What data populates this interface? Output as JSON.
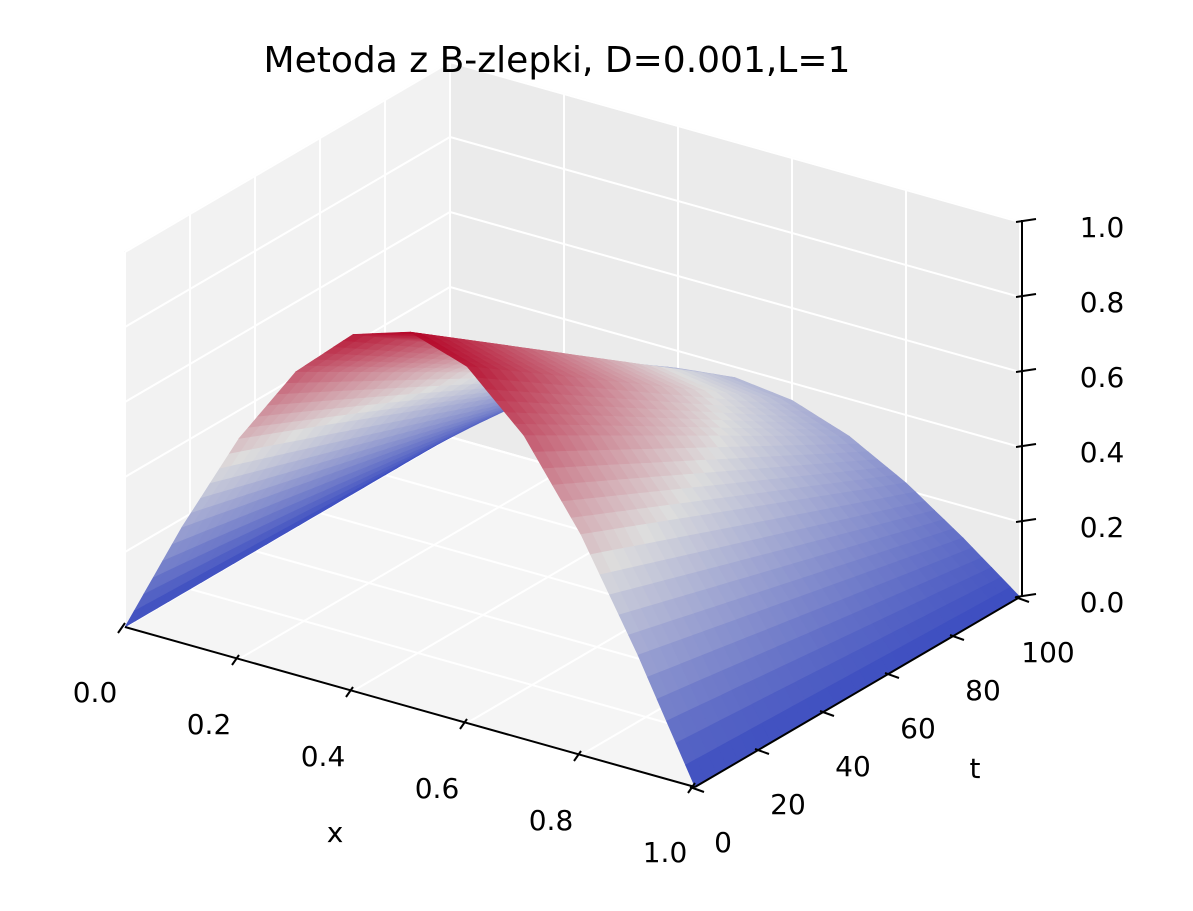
{
  "chart_data": {
    "type": "surface",
    "title": "Metoda z B-zlepki, D=0.001,L=1",
    "xlabel": "x",
    "ylabel": "t",
    "zlabel": "",
    "xlim": [
      0,
      1
    ],
    "ylim": [
      0,
      100
    ],
    "zlim": [
      0,
      1
    ],
    "x_ticks": [
      "0.0",
      "0.2",
      "0.4",
      "0.6",
      "0.8",
      "1.0"
    ],
    "y_ticks": [
      "0",
      "20",
      "40",
      "60",
      "80",
      "100"
    ],
    "z_ticks": [
      "0.0",
      "0.2",
      "0.4",
      "0.6",
      "0.8",
      "1.0"
    ],
    "colormap": "coolwarm",
    "colormap_endpoints": {
      "low": "#3b4cc0",
      "mid": "#dddddd",
      "high": "#b40426"
    },
    "x": [
      0.0,
      0.1,
      0.2,
      0.3,
      0.4,
      0.5,
      0.6,
      0.7,
      0.8,
      0.9,
      1.0
    ],
    "t": [
      0,
      10,
      20,
      30,
      40,
      50,
      60,
      70,
      80,
      90,
      100
    ],
    "z_at_t0": [
      0.0,
      0.309,
      0.588,
      0.809,
      0.951,
      1.0,
      0.951,
      0.809,
      0.588,
      0.309,
      0.0
    ],
    "z_at_t100": [
      0.0,
      0.115,
      0.219,
      0.301,
      0.354,
      0.372,
      0.354,
      0.301,
      0.219,
      0.115,
      0.0
    ],
    "grid": true
  }
}
